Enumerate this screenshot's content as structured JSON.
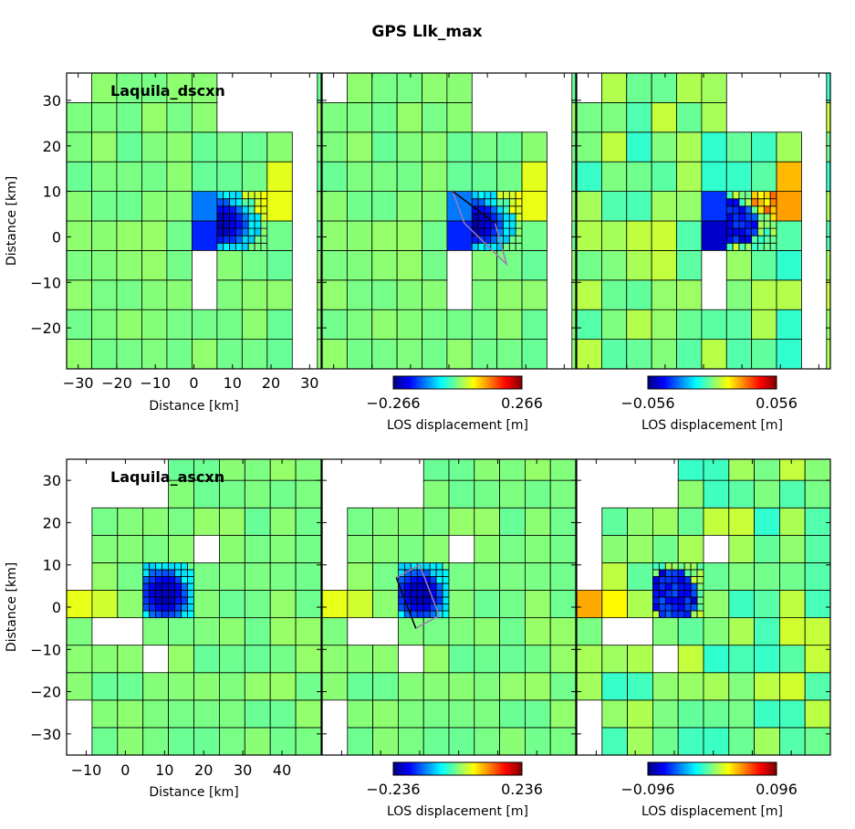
{
  "chart_data": {
    "type": "heatmap",
    "title": "GPS Llk_max",
    "colormap": "jet",
    "rows": [
      {
        "name": "Laquila_dscxn",
        "xlabel": "Distance [km]",
        "ylabel": "Distance [km]",
        "xlim": [
          -33,
          33
        ],
        "ylim": [
          -29,
          36
        ],
        "xticks": [
          "−30",
          "−20",
          "−10",
          "0",
          "10",
          "20",
          "30"
        ],
        "xtick_values": [
          -30,
          -20,
          -10,
          0,
          10,
          20,
          30
        ],
        "yticks": [
          "30",
          "20",
          "10",
          "0",
          "−10",
          "−20"
        ],
        "ytick_values": [
          30,
          20,
          10,
          0,
          -10,
          -20
        ],
        "colorbars": [
          {
            "panel": "data",
            "min": -0.266,
            "max": 0.266,
            "min_label": "−0.266",
            "max_label": "0.266",
            "label": "LOS displacement [m]"
          },
          {
            "panel": "residual",
            "min": -0.056,
            "max": 0.056,
            "min_label": "−0.056",
            "max_label": "0.056",
            "label": "LOS displacement [m]"
          }
        ],
        "panels": [
          "data",
          "model",
          "residual"
        ]
      },
      {
        "name": "Laquila_ascxn",
        "xlabel": "Distance [km]",
        "ylabel": "Distance [km]",
        "xlim": [
          -15,
          50
        ],
        "ylim": [
          -35,
          35
        ],
        "xticks": [
          "−10",
          "0",
          "10",
          "20",
          "30",
          "40"
        ],
        "xtick_values": [
          -10,
          0,
          10,
          20,
          30,
          40
        ],
        "yticks": [
          "30",
          "20",
          "10",
          "0",
          "−10",
          "−20",
          "−30"
        ],
        "ytick_values": [
          30,
          20,
          10,
          0,
          -10,
          -20,
          -30
        ],
        "colorbars": [
          {
            "panel": "data",
            "min": -0.236,
            "max": 0.236,
            "min_label": "−0.236",
            "max_label": "0.236",
            "label": "LOS displacement [m]"
          },
          {
            "panel": "residual",
            "min": -0.096,
            "max": 0.096,
            "min_label": "−0.096",
            "max_label": "0.096",
            "label": "LOS displacement [m]"
          }
        ],
        "panels": [
          "data",
          "model",
          "residual"
        ]
      }
    ]
  },
  "colors": {
    "background_field": "#9cff5a",
    "fault_outline": "#9e7bb0",
    "cell_border": "#000000"
  }
}
